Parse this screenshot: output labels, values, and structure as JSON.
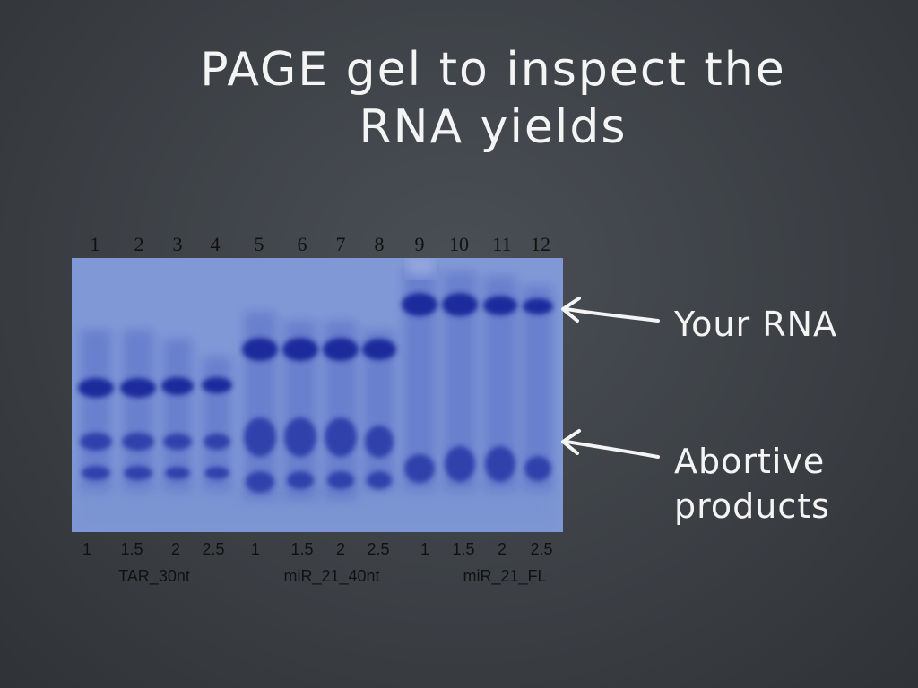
{
  "slide": {
    "title_line1": "PAGE gel to inspect the",
    "title_line2": "RNA yields"
  },
  "gel": {
    "lane_numbers": [
      "1",
      "2",
      "3",
      "4",
      "5",
      "6",
      "7",
      "8",
      "9",
      "10",
      "11",
      "12"
    ],
    "concentrations": [
      "1",
      "1.5",
      "2",
      "2.5",
      "1",
      "1.5",
      "2",
      "2.5",
      "1",
      "1.5",
      "2",
      "2.5"
    ],
    "groups": [
      "TAR_30nt",
      "miR_21_40nt",
      "miR_21_FL"
    ]
  },
  "annotations": {
    "your_rna": "Your RNA",
    "abortive_line1": "Abortive",
    "abortive_line2": "products"
  },
  "colors": {
    "gel_background": "#7f98d6",
    "band": "#1f2fa0",
    "text_light": "#f4f4f4"
  }
}
